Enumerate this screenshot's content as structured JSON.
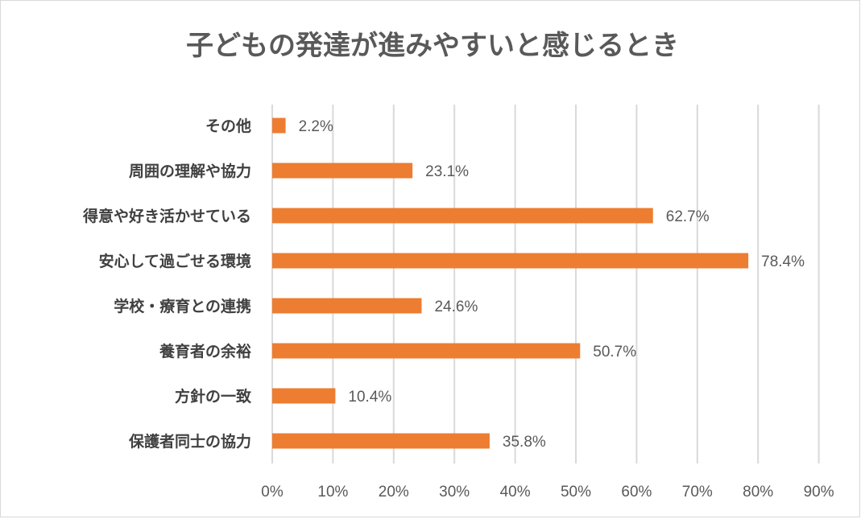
{
  "chart_data": {
    "type": "bar",
    "orientation": "horizontal",
    "title": "子どもの発達が進みやすいと感じるとき",
    "categories": [
      "その他",
      "周囲の理解や協力",
      "得意や好き活かせている",
      "安心して過ごせる環境",
      "学校・療育との連携",
      "養育者の余裕",
      "方針の一致",
      "保護者同士の協力"
    ],
    "values": [
      2.2,
      23.1,
      62.7,
      78.4,
      24.6,
      50.7,
      10.4,
      35.8
    ],
    "data_labels": [
      "2.2%",
      "23.1%",
      "62.7%",
      "78.4%",
      "24.6%",
      "50.7%",
      "10.4%",
      "35.8%"
    ],
    "xlim": [
      0,
      90
    ],
    "x_ticks": [
      "0%",
      "10%",
      "20%",
      "30%",
      "40%",
      "50%",
      "60%",
      "70%",
      "80%",
      "90%"
    ],
    "grid": "vertical",
    "legend": "none",
    "colors": {
      "bar": "#ED7D31",
      "grid": "#D9D9D9",
      "text": "#595959"
    }
  }
}
